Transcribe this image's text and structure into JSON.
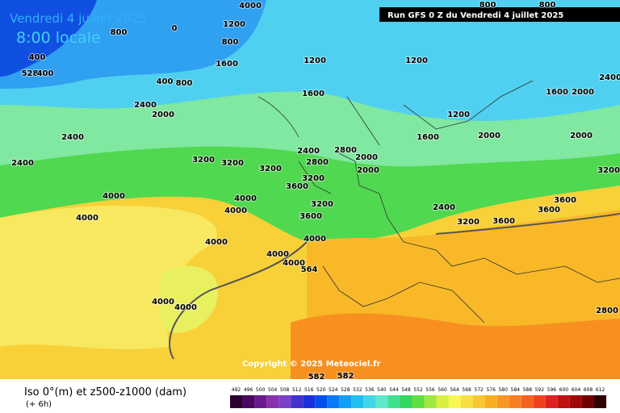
{
  "header": {
    "date": "Vendredi 4 juillet 2025",
    "time": "8:00 locale",
    "run": "Run GFS 0 Z du Vendredi 4 juillet 2025"
  },
  "copyright": "Copyright © 2025 Meteociel.fr",
  "footer": {
    "title": "Iso 0°(m) et z500-z1000 (dam)",
    "step": "(+ 6h)"
  },
  "legend": {
    "labels": [
      492,
      496,
      500,
      504,
      508,
      512,
      516,
      520,
      524,
      528,
      532,
      536,
      540,
      544,
      548,
      552,
      556,
      560,
      564,
      568,
      572,
      576,
      580,
      584,
      588,
      592,
      596,
      600,
      604,
      608,
      612
    ],
    "colors": [
      "#2a0030",
      "#4a0860",
      "#6a1a8a",
      "#8a30aa",
      "#7a40c8",
      "#4030d0",
      "#1a30e0",
      "#0050f0",
      "#0a78f8",
      "#10a0f8",
      "#20c0f0",
      "#40d8e8",
      "#60e8c8",
      "#40e090",
      "#30d860",
      "#60e040",
      "#a0e840",
      "#d8f040",
      "#f8f850",
      "#f8e040",
      "#f8c830",
      "#f8b020",
      "#f89820",
      "#f88020",
      "#f86020",
      "#f04020",
      "#e02020",
      "#c01010",
      "#a00808",
      "#700000",
      "#300000"
    ]
  },
  "contours": [
    "4000",
    "0",
    "800",
    "1200",
    "800",
    "400",
    "528",
    "400",
    "1200",
    "1200",
    "1600",
    "400",
    "800",
    "1600",
    "2400",
    "2000",
    "1200",
    "1600",
    "2000",
    "2000",
    "2000",
    "1600",
    "2400",
    "2400",
    "2800",
    "2000",
    "2000",
    "2800",
    "3200",
    "3200",
    "3200",
    "3200",
    "3600",
    "2400",
    "4000",
    "4000",
    "4000",
    "4000",
    "3200",
    "3600",
    "2400",
    "3200",
    "3600",
    "3600",
    "3600",
    "4000",
    "4000",
    "4000",
    "4000",
    "564",
    "4000",
    "4000",
    "3200",
    "2400",
    "2800",
    "582",
    "582",
    "800",
    "800"
  ]
}
